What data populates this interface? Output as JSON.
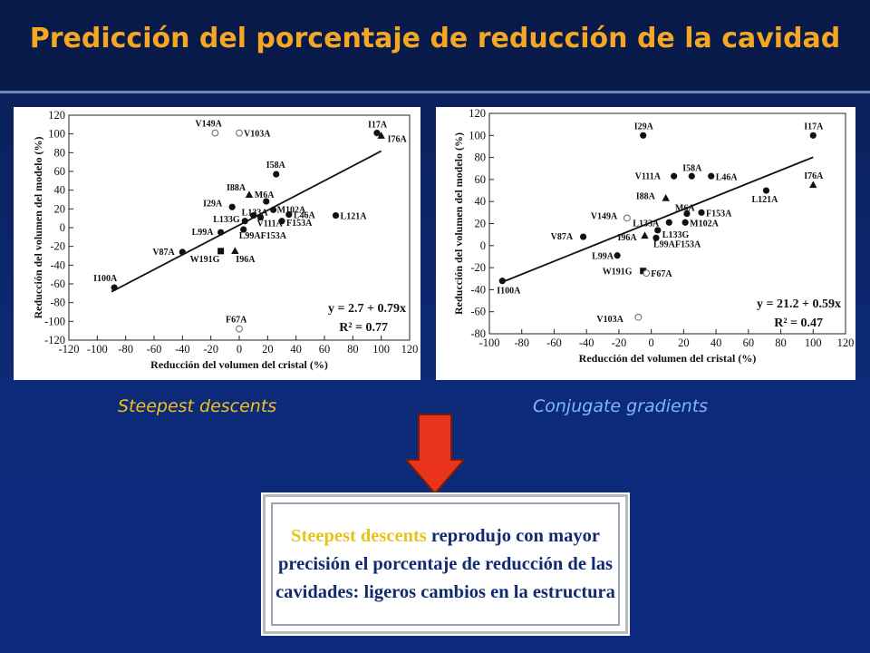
{
  "title": "Predicción del porcentaje de reducción de la cavidad",
  "captions": {
    "left": "Steepest descents",
    "right": "Conjugate gradients"
  },
  "conclusion": {
    "highlight": "Steepest descents",
    "text": " reprodujo con mayor precisión el porcentaje de reducción de las cavidades: ligeros cambios en la estructura"
  },
  "colors": {
    "title": "#f5a623",
    "highlight": "#e8c21c",
    "caption_right": "#7fb5ff",
    "arrow": "#e8351c"
  },
  "chart_data": [
    {
      "type": "scatter",
      "xlabel": "Reducción del volumen del cristal (%)",
      "ylabel": "Reducción del volumen del modelo (%)",
      "xlim": [
        -120,
        120
      ],
      "ylim": [
        -120,
        120
      ],
      "xticks": [
        -120,
        -100,
        -80,
        -60,
        -40,
        -20,
        0,
        20,
        40,
        60,
        80,
        100,
        120
      ],
      "yticks": [
        -120,
        -100,
        -80,
        -60,
        -40,
        -20,
        0,
        20,
        40,
        60,
        80,
        100,
        120
      ],
      "equation": "y = 2.7 + 0.79x",
      "r2": "R² = 0.77",
      "fit": {
        "intercept": 2.7,
        "slope": 0.79,
        "x_range": [
          -90,
          100
        ]
      },
      "points": [
        {
          "label": "V149A",
          "x": -17,
          "y": 101,
          "marker": "open-circle"
        },
        {
          "label": "V103A",
          "x": 0,
          "y": 101,
          "marker": "open-circle"
        },
        {
          "label": "I17A",
          "x": 97,
          "y": 101,
          "marker": "circle"
        },
        {
          "label": "I76A",
          "x": 100,
          "y": 98,
          "marker": "triangle"
        },
        {
          "label": "I58A",
          "x": 26,
          "y": 57,
          "marker": "circle"
        },
        {
          "label": "I88A",
          "x": 7,
          "y": 35,
          "marker": "triangle"
        },
        {
          "label": "M6A",
          "x": 19,
          "y": 28,
          "marker": "circle"
        },
        {
          "label": "M102A",
          "x": 24,
          "y": 19,
          "marker": "circle"
        },
        {
          "label": "I29A",
          "x": -5,
          "y": 22,
          "marker": "circle"
        },
        {
          "label": "L133A",
          "x": 10,
          "y": 13,
          "marker": "circle"
        },
        {
          "label": "L46A",
          "x": 35,
          "y": 14,
          "marker": "circle"
        },
        {
          "label": "L121A",
          "x": 68,
          "y": 13,
          "marker": "circle"
        },
        {
          "label": "L133G",
          "x": 4,
          "y": 7,
          "marker": "circle"
        },
        {
          "label": "V111A",
          "x": 15,
          "y": 11,
          "marker": "circle"
        },
        {
          "label": "F153A",
          "x": 30,
          "y": 7,
          "marker": "circle"
        },
        {
          "label": "L99A",
          "x": -13,
          "y": -5,
          "marker": "circle"
        },
        {
          "label": "L99AF153A",
          "x": 3,
          "y": -2,
          "marker": "circle"
        },
        {
          "label": "V87A",
          "x": -40,
          "y": -26,
          "marker": "circle"
        },
        {
          "label": "W191G",
          "x": -13,
          "y": -25,
          "marker": "square"
        },
        {
          "label": "I96A",
          "x": -3,
          "y": -25,
          "marker": "triangle"
        },
        {
          "label": "I100A",
          "x": -88,
          "y": -64,
          "marker": "circle"
        },
        {
          "label": "F67A",
          "x": 0,
          "y": -108,
          "marker": "open-circle"
        }
      ]
    },
    {
      "type": "scatter",
      "xlabel": "Reducción del volumen del cristal (%)",
      "ylabel": "Reducción del volumen del modelo (%)",
      "xlim": [
        -100,
        120
      ],
      "ylim": [
        -80,
        120
      ],
      "xticks": [
        -100,
        -80,
        -60,
        -40,
        -20,
        0,
        20,
        40,
        60,
        80,
        100,
        120
      ],
      "yticks": [
        -80,
        -60,
        -40,
        -20,
        0,
        20,
        40,
        60,
        80,
        100,
        120
      ],
      "equation": "y = 21.2 + 0.59x",
      "r2": "R² = 0.47",
      "fit": {
        "intercept": 21.2,
        "slope": 0.59,
        "x_range": [
          -92,
          100
        ]
      },
      "points": [
        {
          "label": "I29A",
          "x": -5,
          "y": 100,
          "marker": "circle"
        },
        {
          "label": "I17A",
          "x": 100,
          "y": 100,
          "marker": "circle"
        },
        {
          "label": "I58A",
          "x": 25,
          "y": 63,
          "marker": "circle"
        },
        {
          "label": "V111A",
          "x": 14,
          "y": 63,
          "marker": "circle"
        },
        {
          "label": "L46A",
          "x": 37,
          "y": 63,
          "marker": "circle"
        },
        {
          "label": "I76A",
          "x": 100,
          "y": 55,
          "marker": "triangle"
        },
        {
          "label": "L121A",
          "x": 71,
          "y": 50,
          "marker": "circle"
        },
        {
          "label": "I88A",
          "x": 9,
          "y": 43,
          "marker": "triangle"
        },
        {
          "label": "M6A",
          "x": 22,
          "y": 29,
          "marker": "circle"
        },
        {
          "label": "F153A",
          "x": 31,
          "y": 30,
          "marker": "circle"
        },
        {
          "label": "V149A",
          "x": -15,
          "y": 25,
          "marker": "open-circle"
        },
        {
          "label": "L133A",
          "x": 11,
          "y": 21,
          "marker": "circle"
        },
        {
          "label": "M102A",
          "x": 21,
          "y": 21,
          "marker": "circle"
        },
        {
          "label": "L133G",
          "x": 4,
          "y": 14,
          "marker": "circle"
        },
        {
          "label": "V87A",
          "x": -42,
          "y": 8,
          "marker": "circle"
        },
        {
          "label": "I96A",
          "x": -4,
          "y": 9,
          "marker": "triangle"
        },
        {
          "label": "L99AF153A",
          "x": 3,
          "y": 7,
          "marker": "circle"
        },
        {
          "label": "L99A",
          "x": -21,
          "y": -9,
          "marker": "circle"
        },
        {
          "label": "W191G",
          "x": -5,
          "y": -23,
          "marker": "square"
        },
        {
          "label": "F67A",
          "x": -3,
          "y": -25,
          "marker": "open-circle"
        },
        {
          "label": "I100A",
          "x": -92,
          "y": -32,
          "marker": "circle"
        },
        {
          "label": "V103A",
          "x": -8,
          "y": -65,
          "marker": "open-circle"
        }
      ]
    }
  ]
}
